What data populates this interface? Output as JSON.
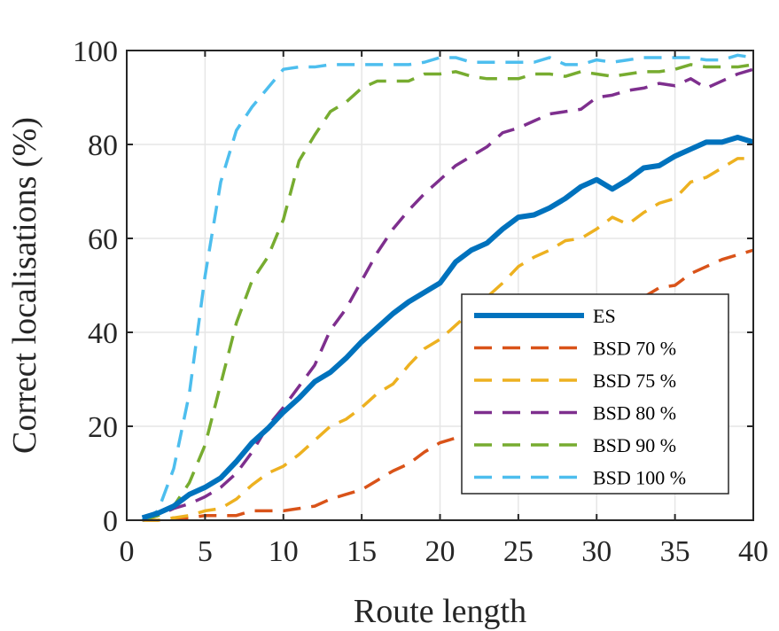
{
  "chart_data": {
    "type": "line",
    "title": "",
    "xlabel": "Route length",
    "ylabel": "Correct localisations (%)",
    "xlim": [
      0,
      40
    ],
    "ylim": [
      0,
      100
    ],
    "xticks": [
      "0",
      "5",
      "10",
      "15",
      "20",
      "25",
      "30",
      "35",
      "40"
    ],
    "yticks": [
      "0",
      "20",
      "40",
      "60",
      "80",
      "100"
    ],
    "grid": true,
    "legend_position": "bottom-right",
    "x": [
      1,
      2,
      3,
      4,
      5,
      6,
      7,
      8,
      9,
      10,
      11,
      12,
      13,
      14,
      15,
      16,
      17,
      18,
      19,
      20,
      21,
      22,
      23,
      24,
      25,
      26,
      27,
      28,
      29,
      30,
      31,
      32,
      33,
      34,
      35,
      36,
      37,
      38,
      39,
      40
    ],
    "series": [
      {
        "name": "ES",
        "color": "#0072BD",
        "style": "solid",
        "values": [
          0.5,
          1.5,
          3,
          5.5,
          7,
          9,
          12.5,
          16.5,
          19.5,
          23,
          26,
          29.5,
          31.5,
          34.5,
          38,
          41,
          44,
          46.5,
          48.5,
          50.5,
          55,
          57.5,
          59,
          62,
          64.5,
          65,
          66.5,
          68.5,
          71,
          72.5,
          70.5,
          72.5,
          75,
          75.5,
          77.5,
          79,
          80.5,
          80.5,
          81.5,
          80.5
        ]
      },
      {
        "name": "BSD 70 %",
        "color": "#D95319",
        "style": "dashed",
        "values": [
          0,
          0,
          0.5,
          0.5,
          1,
          1,
          1,
          2,
          2,
          2,
          2.5,
          3,
          4.5,
          5.5,
          6.5,
          8.5,
          10.5,
          12,
          14.5,
          16.5,
          17.5,
          19.5,
          23,
          26,
          28,
          30.5,
          33.5,
          36,
          38.5,
          41,
          43,
          46,
          47.5,
          49.5,
          50,
          52.5,
          54,
          55.5,
          56.5,
          57.5
        ]
      },
      {
        "name": "BSD 75 %",
        "color": "#EDB120",
        "style": "dashed",
        "values": [
          0,
          0,
          0.5,
          1,
          2,
          2.5,
          4.5,
          7.5,
          10,
          11.5,
          14,
          17,
          20,
          21.5,
          24,
          27,
          29,
          33,
          36.5,
          38.5,
          41.5,
          44.5,
          47.5,
          50.5,
          54,
          56,
          57.5,
          59.5,
          60,
          62,
          64.5,
          63,
          65.5,
          67.5,
          68.5,
          72,
          73,
          75,
          77,
          77
        ]
      },
      {
        "name": "BSD 80 %",
        "color": "#7E2F8E",
        "style": "dashed",
        "values": [
          0,
          1,
          2.5,
          3.5,
          5,
          7,
          10,
          14.5,
          20,
          24,
          28.5,
          33,
          40.5,
          45,
          51,
          57,
          62,
          66,
          69.5,
          72.5,
          75.5,
          77.5,
          79.5,
          82.5,
          83.5,
          85,
          86.5,
          87,
          87.5,
          90,
          90.5,
          91.5,
          92,
          93,
          92.5,
          94,
          92,
          93.5,
          95,
          96
        ]
      },
      {
        "name": "BSD 90 %",
        "color": "#77AC30",
        "style": "dashed",
        "values": [
          0,
          1,
          3,
          8,
          16,
          29,
          42,
          51,
          56,
          64,
          76.5,
          82,
          87,
          89,
          92,
          93.5,
          93.5,
          93.5,
          95,
          95,
          95.5,
          94.5,
          94,
          94,
          94,
          95,
          95,
          94.5,
          95.5,
          95,
          94.5,
          95,
          95.5,
          95.5,
          96,
          97,
          96.5,
          96.5,
          96.5,
          97
        ]
      },
      {
        "name": "BSD 100 %",
        "color": "#4DBEEE",
        "style": "dashed",
        "values": [
          0,
          2,
          11,
          27,
          52,
          72,
          83,
          88,
          92,
          96,
          96.5,
          96.5,
          97,
          97,
          97,
          97,
          97,
          97,
          97.5,
          98.5,
          98.5,
          97.5,
          97.5,
          97.5,
          97.5,
          97.5,
          98.5,
          97,
          97,
          98,
          97.5,
          98,
          98.5,
          98.5,
          98.5,
          98.5,
          98,
          98,
          99,
          98.5
        ]
      }
    ]
  }
}
